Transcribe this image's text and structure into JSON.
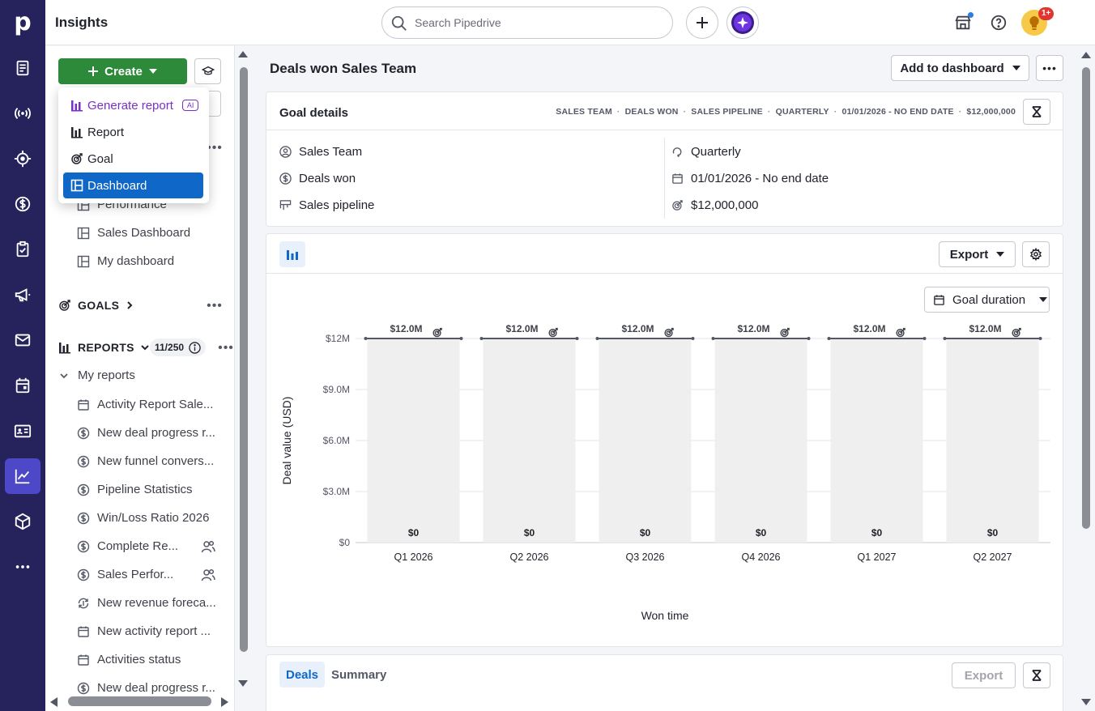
{
  "app": {
    "title": "Insights"
  },
  "search": {
    "placeholder": "Search Pipedrive"
  },
  "notifications": {
    "badge": "1+"
  },
  "rail": {
    "items": [
      {
        "name": "leads-icon"
      },
      {
        "name": "campaigns-signal-icon"
      },
      {
        "name": "focus-target-icon"
      },
      {
        "name": "deals-dollar-icon"
      },
      {
        "name": "tasks-clipboard-icon"
      },
      {
        "name": "megaphone-icon"
      },
      {
        "name": "mail-icon"
      },
      {
        "name": "calendar-icon"
      },
      {
        "name": "contacts-card-icon"
      },
      {
        "name": "insights-chart-icon"
      },
      {
        "name": "products-box-icon"
      },
      {
        "name": "more-icon"
      }
    ]
  },
  "sidebar": {
    "create_label": "Create",
    "dashboards": [
      "Performance",
      "Sales Dashboard",
      "My dashboard"
    ],
    "goals_label": "GOALS",
    "reports_label": "REPORTS",
    "reports_count": "11/250",
    "my_reports_label": "My reports",
    "reports": [
      {
        "label": "Activity Report Sale...",
        "icon": "calendar-icon"
      },
      {
        "label": "New deal progress r...",
        "icon": "dollar-icon"
      },
      {
        "label": "New funnel convers...",
        "icon": "dollar-icon"
      },
      {
        "label": "Pipeline Statistics",
        "icon": "dollar-icon"
      },
      {
        "label": "Win/Loss Ratio 2026",
        "icon": "dollar-icon"
      },
      {
        "label": "Complete Re...",
        "icon": "dollar-icon",
        "shared": true
      },
      {
        "label": "Sales Perfor...",
        "icon": "dollar-icon",
        "shared": true
      },
      {
        "label": "New revenue foreca...",
        "icon": "revenue-icon"
      },
      {
        "label": "New activity report ...",
        "icon": "calendar-icon"
      },
      {
        "label": "Activities status",
        "icon": "calendar-icon"
      },
      {
        "label": "New deal progress r...",
        "icon": "dollar-icon"
      }
    ]
  },
  "create_menu": {
    "items": [
      {
        "label": "Generate report",
        "tag": "AI"
      },
      {
        "label": "Report"
      },
      {
        "label": "Goal"
      },
      {
        "label": "Dashboard"
      }
    ]
  },
  "main": {
    "title": "Deals won Sales Team",
    "add_to_dashboard": "Add to dashboard",
    "goal_details": {
      "title": "Goal details",
      "chips": [
        "SALES TEAM",
        "DEALS WON",
        "SALES PIPELINE",
        "QUARTERLY",
        "01/01/2026 - NO END DATE",
        "$12,000,000"
      ],
      "left": [
        "Sales Team",
        "Deals won",
        "Sales pipeline"
      ],
      "right": [
        "Quarterly",
        "01/01/2026 - No end date",
        "$12,000,000"
      ]
    },
    "export_label": "Export",
    "goal_duration_label": "Goal duration",
    "tabs": [
      "Deals",
      "Summary"
    ],
    "bottom_export": "Export"
  },
  "chart_data": {
    "type": "bar",
    "categories": [
      "Q1 2026",
      "Q2 2026",
      "Q3 2026",
      "Q4 2026",
      "Q1 2027",
      "Q2 2027"
    ],
    "series": [
      {
        "values": [
          0,
          0,
          0,
          0,
          0,
          0
        ],
        "data_labels": [
          "$0",
          "$0",
          "$0",
          "$0",
          "$0",
          "$0"
        ]
      }
    ],
    "goal": {
      "values": [
        12000000,
        12000000,
        12000000,
        12000000,
        12000000,
        12000000
      ],
      "labels": [
        "$12.0M",
        "$12.0M",
        "$12.0M",
        "$12.0M",
        "$12.0M",
        "$12.0M"
      ]
    },
    "ylim": [
      0,
      12000000
    ],
    "yticks": [
      0,
      3000000,
      6000000,
      9000000,
      12000000
    ],
    "ytick_labels": [
      "$0",
      "$3.0M",
      "$6.0M",
      "$9.0M",
      "$12M"
    ],
    "xlabel": "Won time",
    "ylabel": "Deal value (USD)",
    "grid": true,
    "colors": {
      "goal_bar": "#efefef",
      "goal_line": "#545866",
      "grid": "#e3e4e8"
    }
  }
}
